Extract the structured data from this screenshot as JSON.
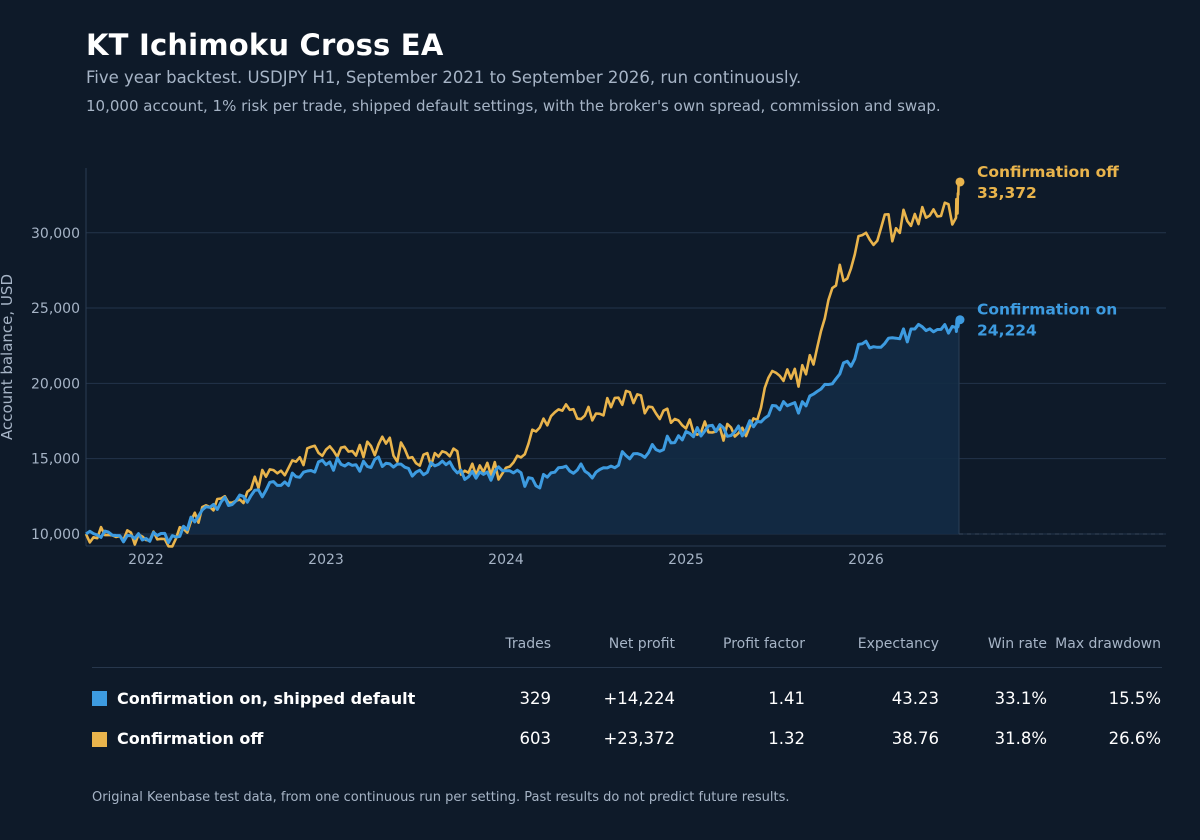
{
  "title": "KT Ichimoku Cross EA",
  "subtitle": "Five year backtest. USDJPY H1, September 2021 to September 2026, run continuously.",
  "subtitle2": "10,000 account, 1% risk per trade, shipped default settings, with the broker's own spread, commission and swap.",
  "chart_data": {
    "type": "line",
    "ylabel": "Account balance, USD",
    "x_ticks": [
      "2022",
      "2023",
      "2024",
      "2025",
      "2026"
    ],
    "y_ticks": [
      "10,000",
      "15,000",
      "20,000",
      "25,000",
      "30,000"
    ],
    "ylim": [
      9200,
      34300
    ],
    "xlim": [
      "2021-09",
      "2027-09"
    ],
    "x": [
      "2021-09",
      "2021-11",
      "2022-01",
      "2022-03",
      "2022-05",
      "2022-07",
      "2022-09",
      "2022-11",
      "2023-01",
      "2023-03",
      "2023-05",
      "2023-07",
      "2023-09",
      "2023-11",
      "2024-01",
      "2024-03",
      "2024-05",
      "2024-07",
      "2024-09",
      "2024-11",
      "2025-01",
      "2025-03",
      "2025-05",
      "2025-07",
      "2025-09",
      "2025-11",
      "2026-01",
      "2026-03",
      "2026-05",
      "2026-07",
      "2026-09"
    ],
    "series": [
      {
        "name": "Confirmation on",
        "end_label": "24,224",
        "color": "#3d9be0",
        "values": [
          10000,
          9900,
          9700,
          9800,
          11800,
          12200,
          12900,
          13800,
          14600,
          14600,
          14700,
          14100,
          14600,
          13700,
          14200,
          13200,
          14500,
          14100,
          15200,
          15600,
          16800,
          16800,
          16900,
          18500,
          18500,
          20300,
          22800,
          23000,
          23500,
          23700,
          24224
        ]
      },
      {
        "name": "Confirmation off",
        "end_label": "33,372",
        "color": "#e9b44c",
        "values": [
          10000,
          9800,
          9600,
          9700,
          11900,
          12200,
          13800,
          14800,
          15600,
          15200,
          16000,
          14700,
          15400,
          13900,
          14400,
          16800,
          18600,
          18000,
          19500,
          18000,
          17000,
          16800,
          16500,
          20700,
          20600,
          26500,
          30000,
          30300,
          31000,
          31000,
          33372
        ]
      }
    ],
    "grid": true,
    "legend": "direct labels at line ends"
  },
  "stats": {
    "headers": [
      "Trades",
      "Net profit",
      "Profit factor",
      "Expectancy",
      "Win rate",
      "Max drawdown"
    ],
    "rows": [
      {
        "label": "Confirmation on, shipped default",
        "color": "#3d9be0",
        "values": [
          "329",
          "+14,224",
          "1.41",
          "43.23",
          "33.1%",
          "15.5%"
        ]
      },
      {
        "label": "Confirmation off",
        "color": "#e9b44c",
        "values": [
          "603",
          "+23,372",
          "1.32",
          "38.76",
          "31.8%",
          "26.6%"
        ]
      }
    ]
  },
  "footnote": "Original Keenbase test data, from one continuous run per setting. Past results do not predict future results."
}
